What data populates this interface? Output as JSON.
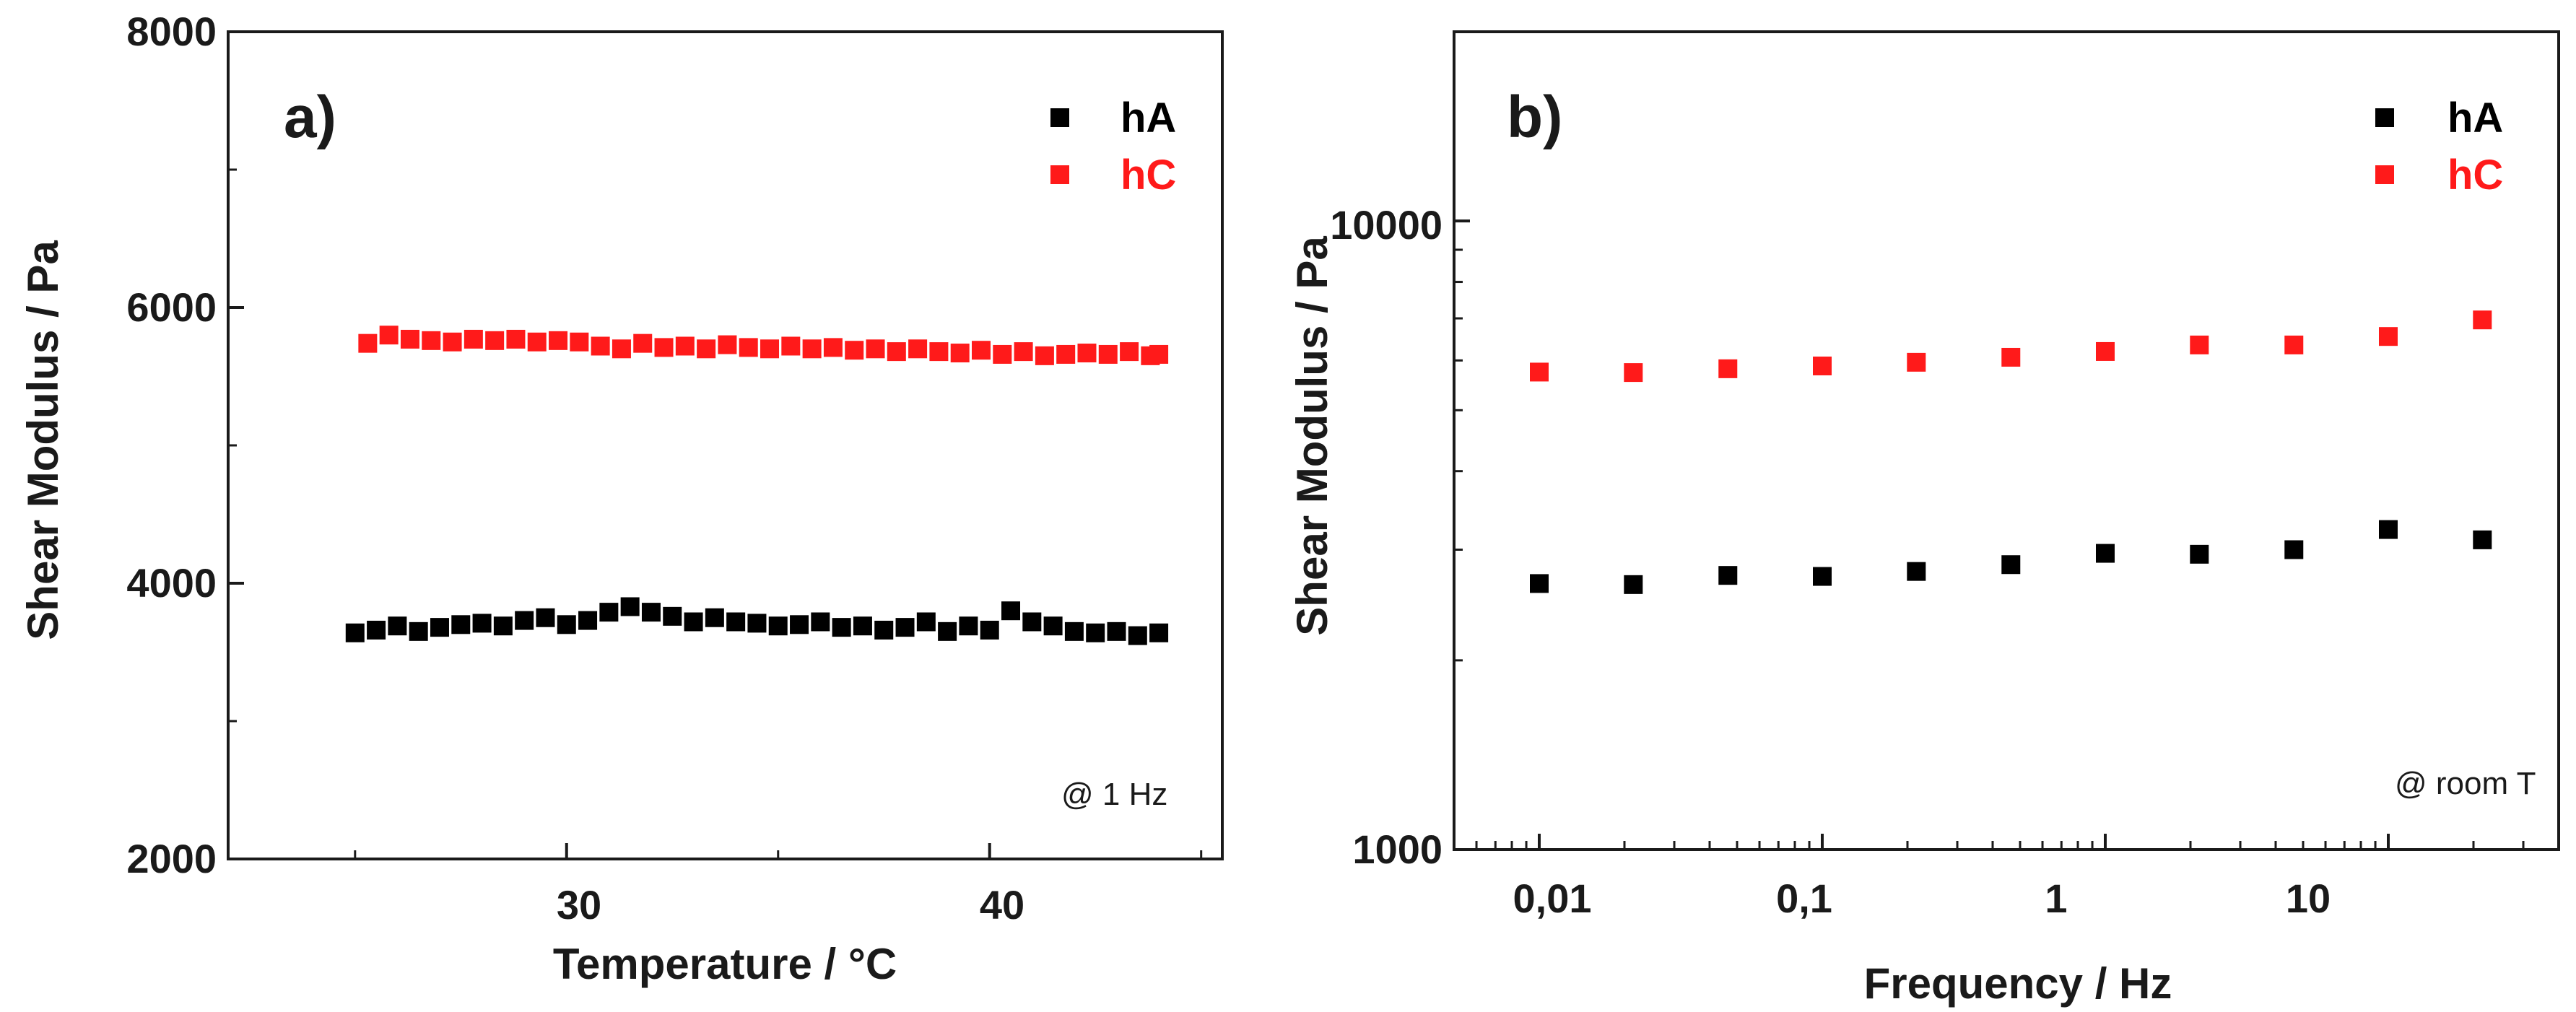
{
  "colors": {
    "hA": "#000000",
    "hC": "#ff1a1a",
    "axis": "#1a1a1a"
  },
  "chart_data": [
    {
      "type": "scatter",
      "panel_label": "a)",
      "title": "",
      "xlabel": "Temperature / °C",
      "ylabel": "Shear Modulus / Pa",
      "xscale": "linear",
      "yscale": "linear",
      "xlim": [
        22,
        45.5
      ],
      "ylim": [
        2000,
        8000
      ],
      "xticks": [
        30,
        40
      ],
      "xtick_labels": [
        "30",
        "40"
      ],
      "yticks": [
        2000,
        4000,
        6000,
        8000
      ],
      "ytick_labels": [
        "2000",
        "4000",
        "6000",
        "8000"
      ],
      "yminor_ticks": [
        3000,
        5000,
        7000
      ],
      "legend_position": "top-right",
      "annotation": "@ 1 Hz",
      "series": [
        {
          "name": "hA",
          "color": "#000000",
          "x": [
            25,
            25.5,
            26,
            26.5,
            27,
            27.5,
            28,
            28.5,
            29,
            29.5,
            30,
            30.5,
            31,
            31.5,
            32,
            32.5,
            33,
            33.5,
            34,
            34.5,
            35,
            35.5,
            36,
            36.5,
            37,
            37.5,
            38,
            38.5,
            39,
            39.5,
            40,
            40.5,
            41,
            41.5,
            42,
            42.5,
            43,
            43.5,
            44
          ],
          "y": [
            3640,
            3660,
            3690,
            3650,
            3680,
            3700,
            3710,
            3690,
            3730,
            3750,
            3700,
            3730,
            3790,
            3830,
            3790,
            3760,
            3720,
            3750,
            3720,
            3710,
            3690,
            3700,
            3720,
            3680,
            3690,
            3660,
            3680,
            3720,
            3650,
            3690,
            3660,
            3800,
            3720,
            3690,
            3650,
            3640,
            3650,
            3620,
            3640
          ]
        },
        {
          "name": "hC",
          "color": "#ff1a1a",
          "x": [
            25.3,
            25.8,
            26.3,
            26.8,
            27.3,
            27.8,
            28.3,
            28.8,
            29.3,
            29.8,
            30.3,
            30.8,
            31.3,
            31.8,
            32.3,
            32.8,
            33.3,
            33.8,
            34.3,
            34.8,
            35.3,
            35.8,
            36.3,
            36.8,
            37.3,
            37.8,
            38.3,
            38.8,
            39.3,
            39.8,
            40.3,
            40.8,
            41.3,
            41.8,
            42.3,
            42.8,
            43.3,
            43.8,
            44
          ],
          "y": [
            5740,
            5800,
            5770,
            5760,
            5750,
            5770,
            5760,
            5770,
            5750,
            5760,
            5750,
            5720,
            5700,
            5740,
            5710,
            5720,
            5700,
            5730,
            5710,
            5700,
            5720,
            5700,
            5710,
            5690,
            5700,
            5680,
            5700,
            5680,
            5670,
            5690,
            5660,
            5680,
            5650,
            5660,
            5670,
            5660,
            5680,
            5650,
            5660
          ]
        }
      ]
    },
    {
      "type": "scatter",
      "panel_label": "b)",
      "title": "",
      "xlabel": "Frequency / Hz",
      "ylabel": "Shear Modulus / Pa",
      "xscale": "log",
      "yscale": "log",
      "xlim": [
        0.005,
        40
      ],
      "ylim": [
        1000,
        20000
      ],
      "xticks": [
        0.01,
        0.1,
        1,
        10
      ],
      "xtick_labels": [
        "0,01",
        "0,1",
        "1",
        "10"
      ],
      "yticks": [
        1000,
        10000
      ],
      "ytick_labels": [
        "1000",
        "10000"
      ],
      "yminor_ticks": [
        2000,
        3000,
        4000,
        5000,
        6000,
        7000,
        8000,
        9000
      ],
      "legend_position": "top-right",
      "annotation": "@ room T",
      "series": [
        {
          "name": "hA",
          "color": "#000000",
          "x": [
            0.01,
            0.0215,
            0.0464,
            0.1,
            0.215,
            0.464,
            1,
            2.15,
            4.64,
            10,
            21.5
          ],
          "y": [
            2650,
            2640,
            2730,
            2720,
            2770,
            2840,
            2960,
            2950,
            3000,
            3230,
            3110
          ]
        },
        {
          "name": "hC",
          "color": "#ff1a1a",
          "x": [
            0.01,
            0.0215,
            0.0464,
            0.1,
            0.215,
            0.464,
            1,
            2.15,
            4.64,
            10,
            21.5
          ],
          "y": [
            5750,
            5740,
            5820,
            5880,
            5960,
            6070,
            6200,
            6350,
            6350,
            6550,
            6960
          ]
        }
      ]
    }
  ]
}
